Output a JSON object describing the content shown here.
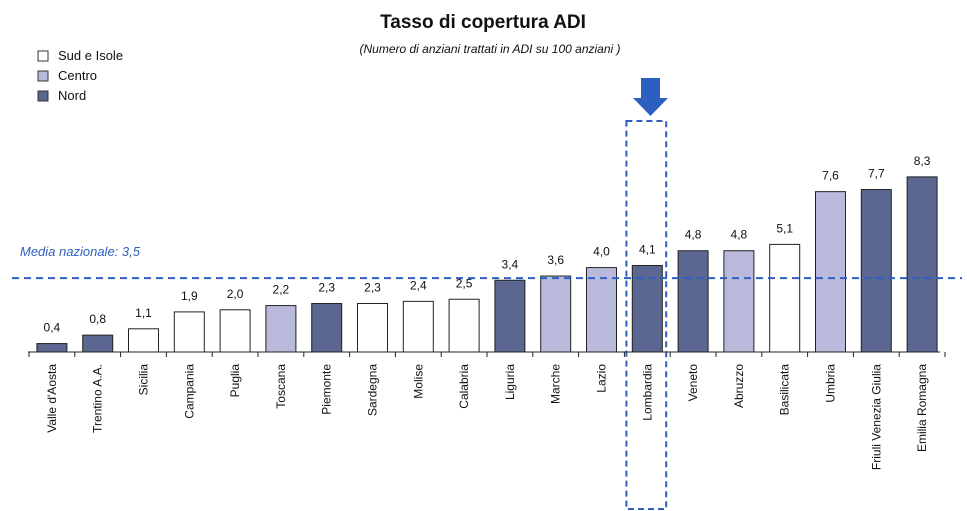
{
  "chart_data": {
    "type": "bar",
    "title": "Tasso di copertura ADI",
    "subtitle": "(Numero di anziani trattati in ADI su 100 anziani )",
    "categories": [
      "Valle d'Aosta",
      "Trentino A.A.",
      "Sicilia",
      "Campania",
      "Puglia",
      "Toscana",
      "Piemonte",
      "Sardegna",
      "Molise",
      "Calabria",
      "Liguria",
      "Marche",
      "Lazio",
      "Lombardia",
      "Veneto",
      "Abruzzo",
      "Basilicata",
      "Umbria",
      "Friuli Venezia Giulia",
      "Emilia Romagna"
    ],
    "values": [
      0.4,
      0.8,
      1.1,
      1.9,
      2.0,
      2.2,
      2.3,
      2.3,
      2.4,
      2.5,
      3.4,
      3.6,
      4.0,
      4.1,
      4.8,
      4.8,
      5.1,
      7.6,
      7.7,
      8.3
    ],
    "value_labels": [
      "0,4",
      "0,8",
      "1,1",
      "1,9",
      "2,0",
      "2,2",
      "2,3",
      "2,3",
      "2,4",
      "2,5",
      "3,4",
      "3,6",
      "4,0",
      "4,1",
      "4,8",
      "4,8",
      "5,1",
      "7,6",
      "7,7",
      "8,3"
    ],
    "colors": [
      "#5b6691",
      "#5b6691",
      "#ffffff",
      "#ffffff",
      "#ffffff",
      "#b9b9dc",
      "#5b6691",
      "#ffffff",
      "#ffffff",
      "#ffffff",
      "#5b6691",
      "#b9b9dc",
      "#b9b9dc",
      "#5b6691",
      "#5b6691",
      "#b9b9dc",
      "#ffffff",
      "#b9b9dc",
      "#5b6691",
      "#5b6691"
    ],
    "legend": [
      {
        "name": "Sud e Isole",
        "color": "#ffffff"
      },
      {
        "name": "Centro",
        "color": "#b9b9dc"
      },
      {
        "name": "Nord",
        "color": "#5b6691"
      }
    ],
    "reference": {
      "label": "Media nazionale: 3,5",
      "value": 3.5
    },
    "highlight": 13,
    "ylim": [
      0,
      10
    ]
  }
}
